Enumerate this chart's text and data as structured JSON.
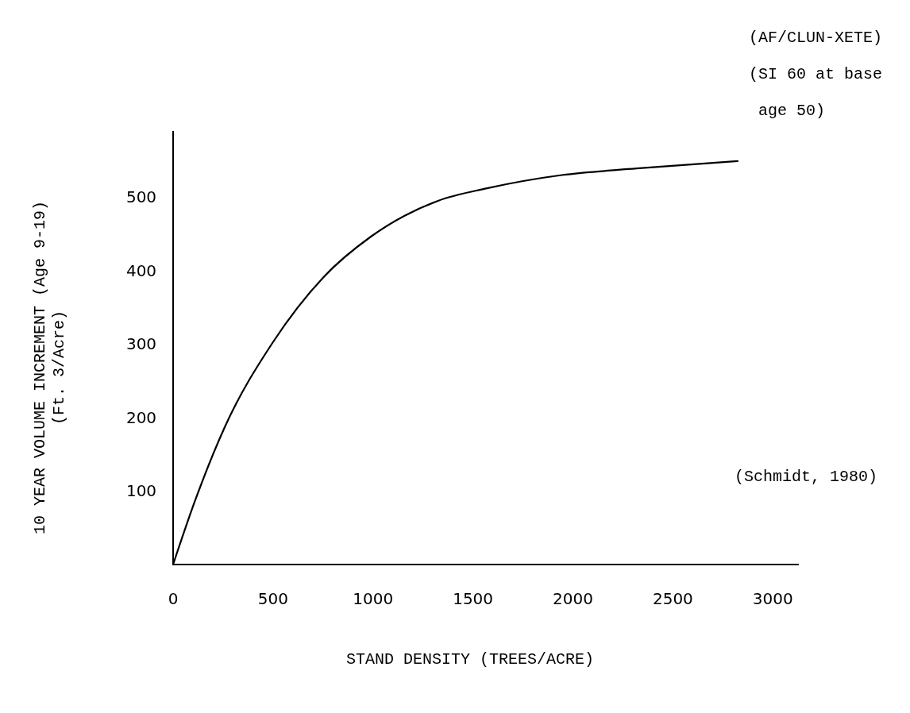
{
  "chart_data": {
    "type": "line",
    "xlabel": "STAND DENSITY (TREES/ACRE)",
    "ylabel": "10 YEAR VOLUME INCREMENT (Age 9-19)\n(Ft. 3/Acre)",
    "annotations": [
      "(AF/CLUN-XETE)",
      "(SI 60 at base\n age 50)",
      "(Schmidt, 1980)"
    ],
    "series": [
      {
        "color": "#000000",
        "x": [
          0,
          110,
          260,
          498,
          752,
          988,
          1325,
          1570,
          1944,
          2318,
          2824
        ],
        "values": [
          0,
          87,
          188,
          302,
          391,
          446,
          495,
          512,
          530,
          539,
          549
        ]
      }
    ],
    "xlim": [
      0,
      3130
    ],
    "xticks": [
      0,
      500,
      1000,
      1500,
      2000,
      2500,
      3000
    ],
    "ylim": [
      0,
      590
    ],
    "yticks": [
      100,
      200,
      300,
      400,
      500
    ],
    "marker": "none",
    "line_style": "solid"
  }
}
